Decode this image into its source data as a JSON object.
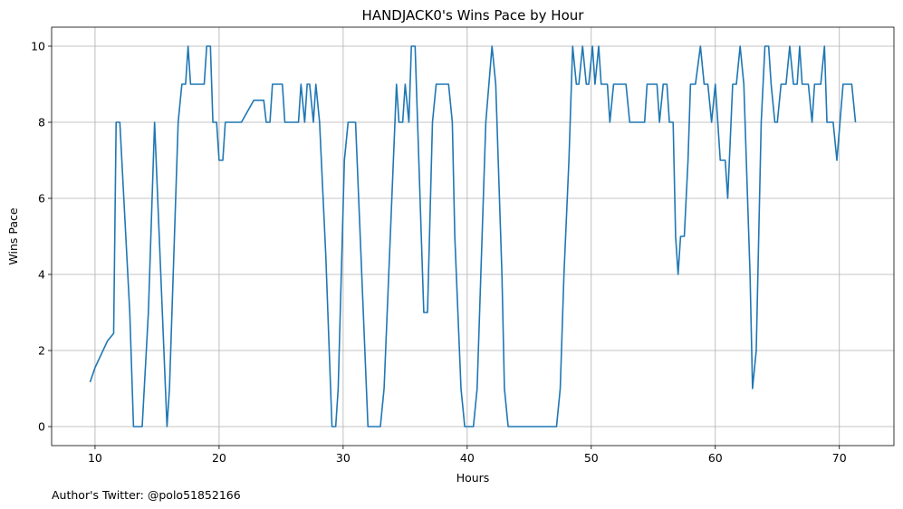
{
  "chart_data": {
    "type": "line",
    "title": "HANDJACK0's Wins Pace by Hour",
    "x_label": "Hours",
    "y_label": "Wins Pace",
    "annotation": "Author's Twitter: @polo51852166",
    "color": "#1f77b4",
    "grid": true,
    "xlim": [
      6.5,
      74.4
    ],
    "ylim": [
      -0.5,
      10.5
    ],
    "xticks": [
      10,
      20,
      30,
      40,
      50,
      60,
      70
    ],
    "yticks": [
      0,
      2,
      4,
      6,
      8,
      10
    ],
    "x": [
      9.6,
      10.0,
      10.5,
      11.0,
      11.5,
      11.7,
      12.0,
      12.4,
      12.8,
      13.1,
      13.8,
      14.3,
      14.8,
      15.3,
      15.8,
      16.0,
      16.4,
      16.7,
      17.0,
      17.3,
      17.5,
      17.7,
      18.8,
      19.0,
      19.3,
      19.5,
      19.8,
      20.0,
      20.3,
      20.5,
      21.8,
      22.8,
      23.6,
      23.8,
      24.1,
      24.3,
      25.1,
      25.3,
      26.4,
      26.6,
      26.9,
      27.1,
      27.3,
      27.6,
      27.8,
      28.1,
      28.6,
      29.1,
      29.4,
      29.6,
      30.1,
      30.4,
      31.0,
      31.5,
      32.0,
      33.0,
      33.3,
      33.8,
      34.3,
      34.5,
      34.8,
      35.0,
      35.3,
      35.5,
      35.8,
      36.1,
      36.5,
      36.8,
      37.2,
      37.5,
      38.5,
      38.8,
      39.0,
      39.5,
      39.8,
      40.5,
      40.8,
      41.5,
      42.0,
      42.3,
      42.8,
      43.0,
      43.3,
      47.2,
      47.5,
      47.8,
      48.2,
      48.5,
      48.8,
      49.0,
      49.3,
      49.6,
      49.8,
      50.1,
      50.3,
      50.6,
      50.8,
      51.3,
      51.5,
      51.8,
      52.8,
      53.1,
      54.3,
      54.5,
      55.3,
      55.5,
      55.8,
      56.1,
      56.3,
      56.6,
      56.8,
      57.0,
      57.2,
      57.5,
      57.8,
      58.0,
      58.4,
      58.8,
      59.1,
      59.4,
      59.7,
      60.0,
      60.4,
      60.8,
      61.0,
      61.4,
      61.7,
      62.0,
      62.3,
      62.8,
      63.0,
      63.3,
      63.7,
      64.0,
      64.3,
      64.5,
      64.8,
      65.0,
      65.3,
      65.7,
      66.0,
      66.3,
      66.6,
      66.8,
      67.0,
      67.5,
      67.8,
      68.0,
      68.5,
      68.8,
      69.0,
      69.5,
      69.8,
      70.3,
      71.0,
      71.3
    ],
    "values": [
      1.17,
      1.55,
      1.9,
      2.25,
      2.45,
      8,
      8,
      5.5,
      3,
      0,
      0,
      3,
      8,
      4,
      0,
      1,
      5,
      8,
      9,
      9,
      10,
      9,
      9,
      10,
      10,
      8,
      8,
      7,
      7,
      8,
      8,
      8.58,
      8.58,
      8,
      8,
      9,
      9,
      8,
      8,
      9,
      8,
      9,
      9,
      8,
      9,
      8,
      4.5,
      0,
      0,
      1,
      7,
      8,
      8,
      4,
      0,
      0,
      1,
      5,
      9,
      8,
      8,
      9,
      8,
      10,
      10,
      7,
      3,
      3,
      8,
      9,
      9,
      8,
      5,
      1,
      0,
      0,
      1,
      8,
      10,
      9,
      4,
      1,
      0,
      0,
      1,
      4,
      7,
      10,
      9,
      9,
      10,
      9,
      9,
      10,
      9,
      10,
      9,
      9,
      8,
      9,
      9,
      8,
      8,
      9,
      9,
      8,
      9,
      9,
      8,
      8,
      5,
      4,
      5,
      5,
      7,
      9,
      9,
      10,
      9,
      9,
      8,
      9,
      7,
      7,
      6,
      9,
      9,
      10,
      9,
      4,
      1,
      2,
      8,
      10,
      10,
      9,
      8,
      8,
      9,
      9,
      10,
      9,
      9,
      10,
      9,
      9,
      8,
      9,
      9,
      10,
      8,
      8,
      7,
      9,
      9,
      8
    ]
  }
}
